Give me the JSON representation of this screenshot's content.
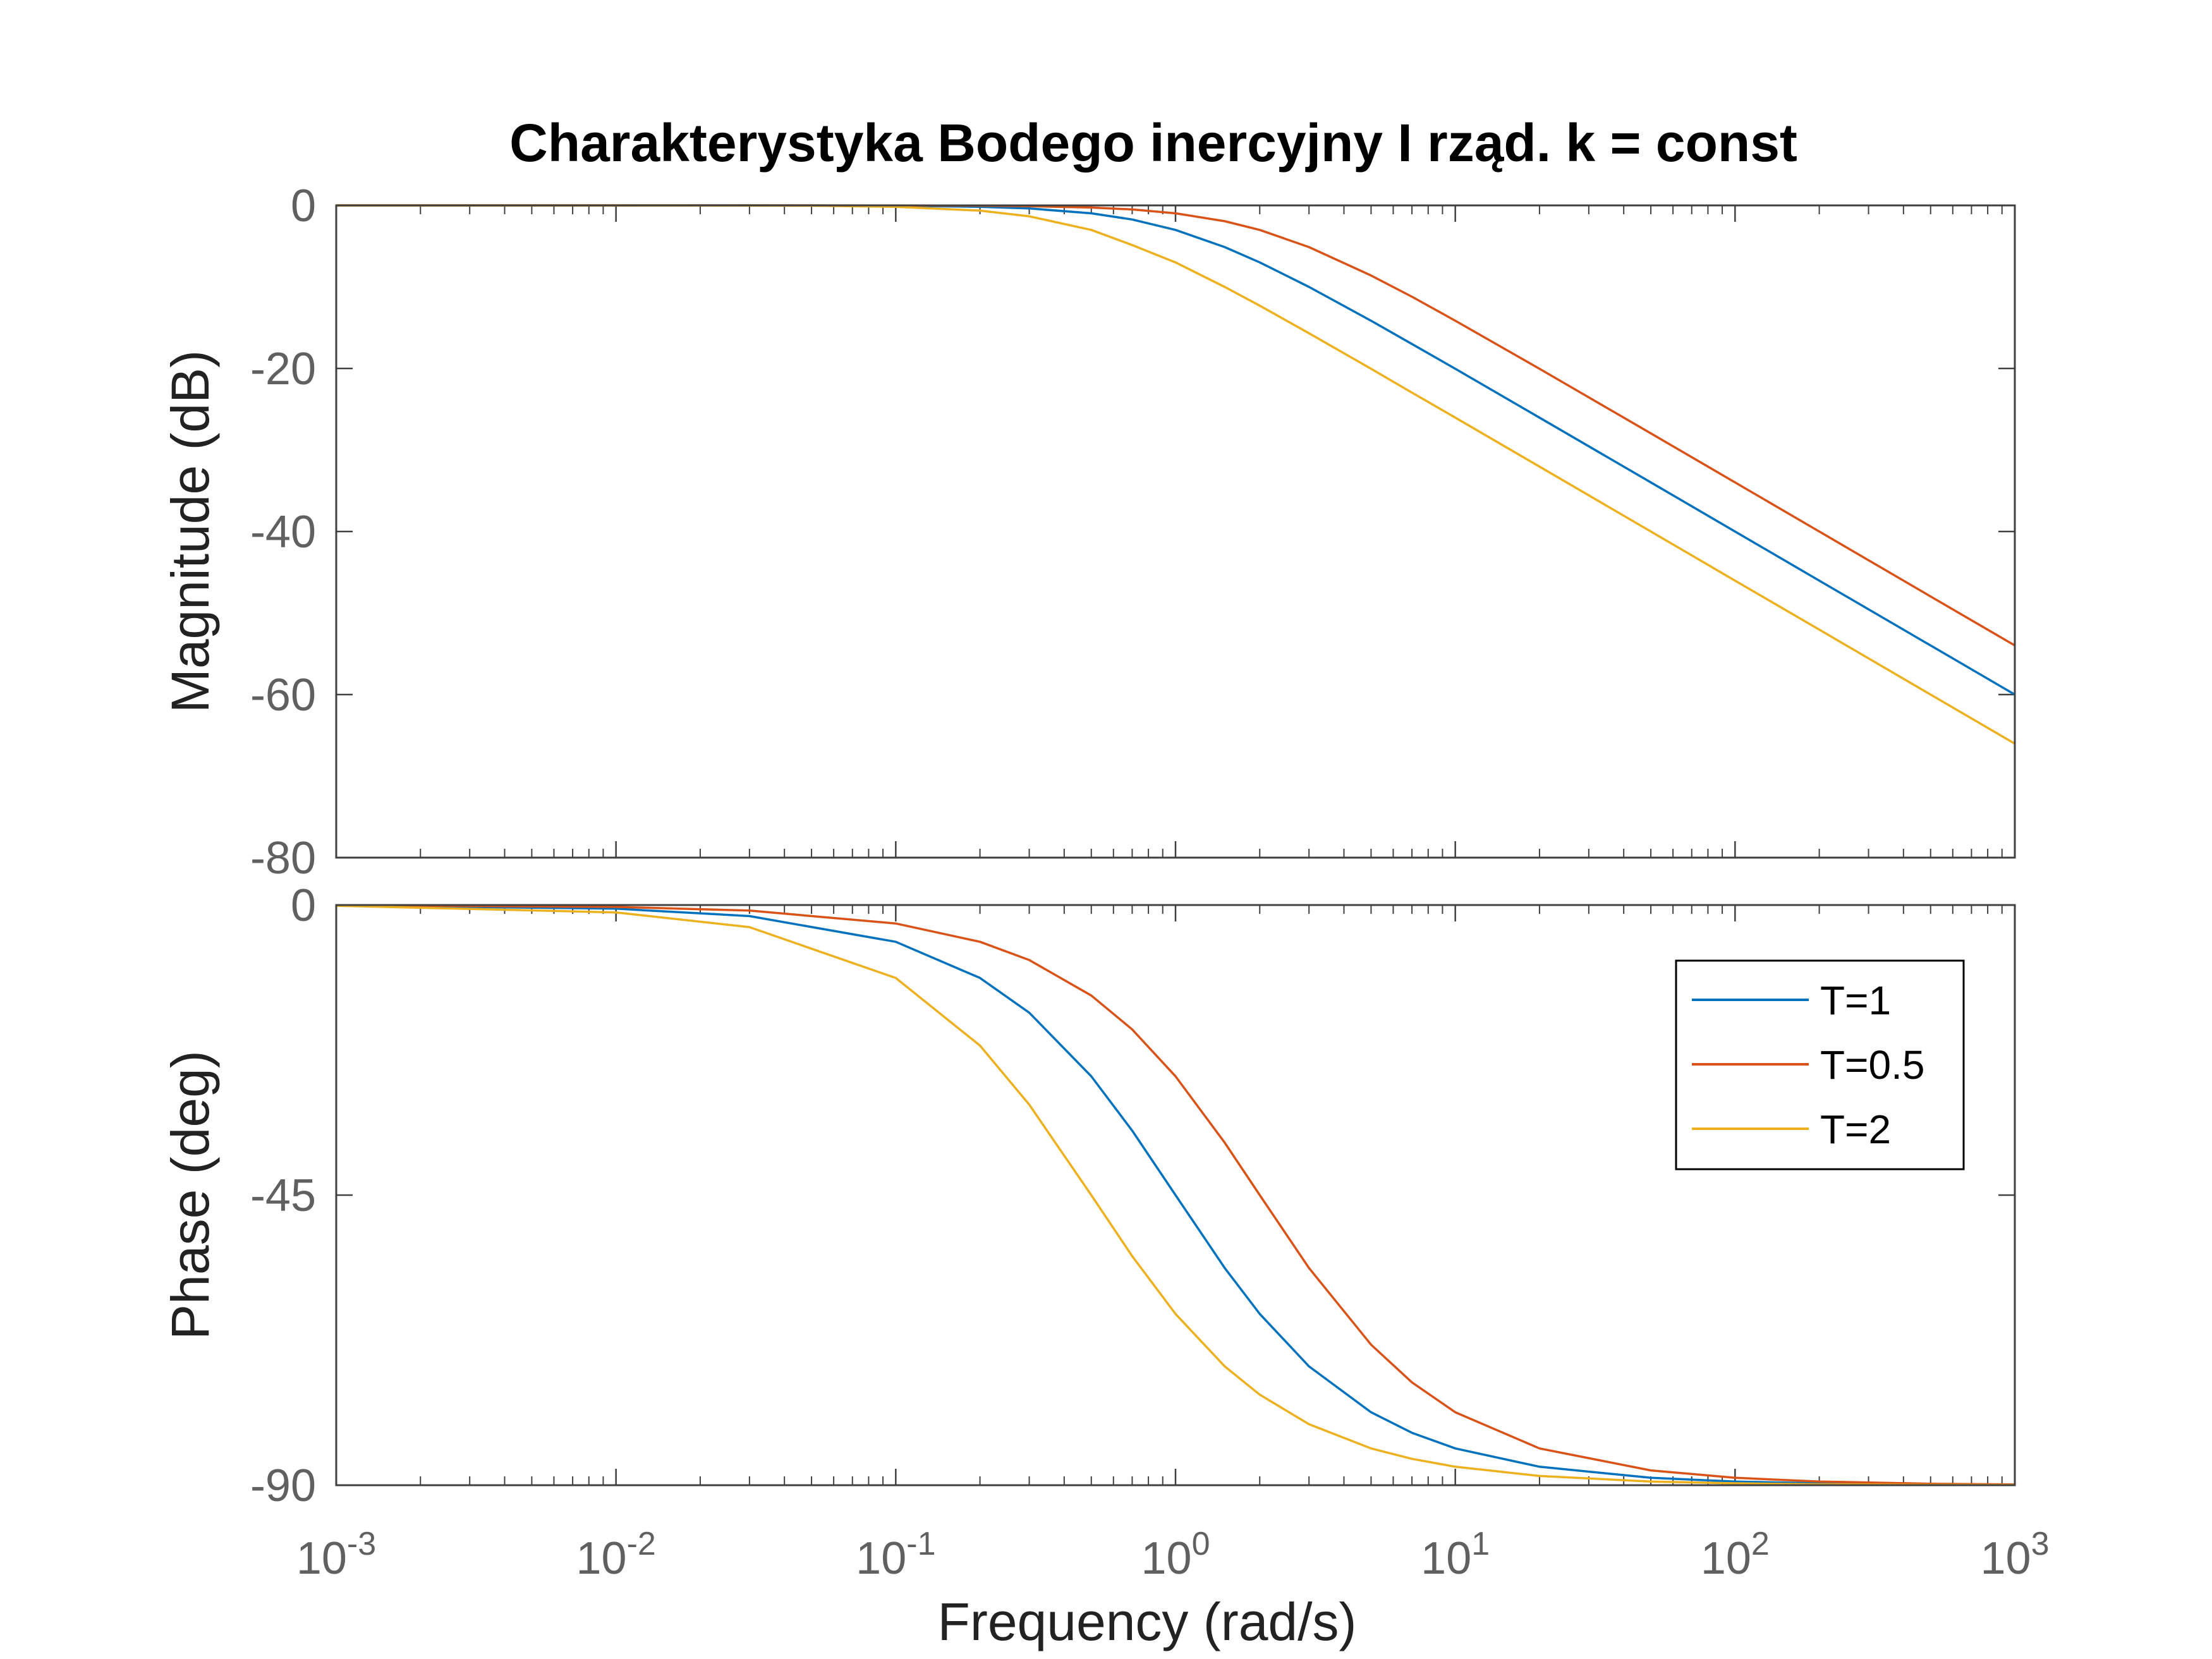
{
  "chart_data": {
    "type": "line",
    "title": "Charakterystyka Bodego inercyjny I rząd. k = const",
    "xlabel": "Frequency  (rad/s)",
    "x_scale": "log",
    "xlim": [
      0.001,
      1000
    ],
    "x_ticks": [
      {
        "value": 0.001,
        "base": "10",
        "exp": "-3"
      },
      {
        "value": 0.01,
        "base": "10",
        "exp": "-2"
      },
      {
        "value": 0.1,
        "base": "10",
        "exp": "-1"
      },
      {
        "value": 1,
        "base": "10",
        "exp": "0"
      },
      {
        "value": 10,
        "base": "10",
        "exp": "1"
      },
      {
        "value": 100,
        "base": "10",
        "exp": "2"
      },
      {
        "value": 1000,
        "base": "10",
        "exp": "3"
      }
    ],
    "grid": false,
    "legend_position": "top-right",
    "colors": [
      "#0072BD",
      "#D95319",
      "#EDB120"
    ],
    "panels": [
      {
        "name": "magnitude",
        "ylabel": "Magnitude (dB)",
        "ylim": [
          -80,
          0
        ],
        "y_ticks": [
          {
            "value": 0,
            "label": "0"
          },
          {
            "value": -20,
            "label": "-20"
          },
          {
            "value": -40,
            "label": "-40"
          },
          {
            "value": -60,
            "label": "-60"
          },
          {
            "value": -80,
            "label": "-80"
          }
        ],
        "x": [
          0.001,
          0.01,
          0.05,
          0.1,
          0.2,
          0.3,
          0.5,
          0.7,
          1,
          1.5,
          2,
          3,
          5,
          7,
          10,
          20,
          50,
          100,
          200,
          500,
          1000
        ],
        "series": [
          {
            "name": "T=1",
            "values": [
              0,
              0,
              -0.01,
              -0.04,
              -0.17,
              -0.37,
              -0.97,
              -1.73,
              -3.01,
              -5.12,
              -6.99,
              -10.0,
              -14.15,
              -17.0,
              -20.04,
              -26.03,
              -33.98,
              -40.0,
              -46.02,
              -53.98,
              -60.0
            ]
          },
          {
            "name": "T=0.5",
            "values": [
              0,
              0,
              0,
              -0.01,
              -0.04,
              -0.1,
              -0.26,
              -0.5,
              -0.97,
              -1.94,
              -3.01,
              -5.12,
              -8.6,
              -11.2,
              -14.15,
              -20.04,
              -27.96,
              -33.98,
              -40.0,
              -47.96,
              -53.98
            ]
          },
          {
            "name": "T=2",
            "values": [
              0,
              0,
              -0.04,
              -0.17,
              -0.64,
              -1.34,
              -3.01,
              -4.86,
              -6.99,
              -10.0,
              -12.3,
              -15.68,
              -20.04,
              -22.96,
              -26.03,
              -32.04,
              -40.0,
              -46.02,
              -52.04,
              -60.0,
              -66.02
            ]
          }
        ]
      },
      {
        "name": "phase",
        "ylabel": "Phase (deg)",
        "ylim": [
          -90,
          0
        ],
        "y_ticks": [
          {
            "value": 0,
            "label": "0"
          },
          {
            "value": -45,
            "label": "-45"
          },
          {
            "value": -90,
            "label": "-90"
          }
        ],
        "x": [
          0.001,
          0.01,
          0.03,
          0.1,
          0.2,
          0.3,
          0.5,
          0.7,
          1,
          1.5,
          2,
          3,
          5,
          7,
          10,
          20,
          50,
          100,
          200,
          500,
          1000
        ],
        "series": [
          {
            "name": "T=1",
            "values": [
              -0.06,
              -0.57,
              -1.72,
              -5.71,
              -11.31,
              -16.7,
              -26.57,
              -34.99,
              -45.0,
              -56.31,
              -63.43,
              -71.57,
              -78.69,
              -81.87,
              -84.29,
              -87.14,
              -88.85,
              -89.43,
              -89.71,
              -89.89,
              -89.94
            ]
          },
          {
            "name": "T=0.5",
            "values": [
              -0.03,
              -0.29,
              -0.86,
              -2.86,
              -5.71,
              -8.53,
              -14.04,
              -19.29,
              -26.57,
              -36.87,
              -45.0,
              -56.31,
              -68.2,
              -74.05,
              -78.69,
              -84.29,
              -87.71,
              -88.85,
              -89.43,
              -89.77,
              -89.89
            ]
          },
          {
            "name": "T=2",
            "values": [
              -0.11,
              -1.15,
              -3.43,
              -11.31,
              -21.8,
              -30.96,
              -45.0,
              -54.46,
              -63.43,
              -71.57,
              -75.96,
              -80.54,
              -84.29,
              -85.91,
              -87.14,
              -88.57,
              -89.43,
              -89.71,
              -89.86,
              -89.94,
              -89.97
            ]
          }
        ]
      }
    ]
  }
}
